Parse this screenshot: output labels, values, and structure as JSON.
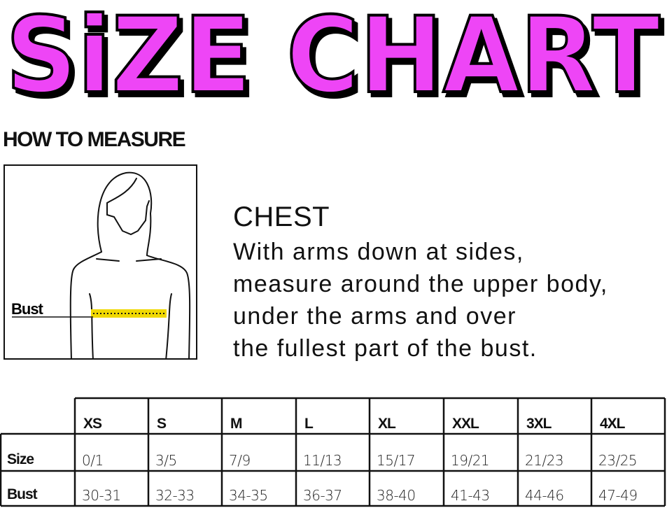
{
  "title": "SiZE CHART",
  "title_color": "#ee44f6",
  "how_to_measure": "HOW TO MEASURE",
  "figure": {
    "label": "Bust",
    "tape_color": "#f0d800"
  },
  "chest": {
    "heading": "CHEST",
    "lines": [
      "With arms down at sides,",
      "measure around the upper body,",
      "under the arms and over",
      "the fullest part of the bust."
    ]
  },
  "table": {
    "columns": [
      "XS",
      "S",
      "M",
      "L",
      "XL",
      "XXL",
      "3XL",
      "4XL"
    ],
    "rows": [
      {
        "label": "Size",
        "values": [
          "0/1",
          "3/5",
          "7/9",
          "11/13",
          "15/17",
          "19/21",
          "21/23",
          "23/25"
        ]
      },
      {
        "label": "Bust",
        "values": [
          "30-31",
          "32-33",
          "34-35",
          "36-37",
          "38-40",
          "41-43",
          "44-46",
          "47-49"
        ]
      }
    ]
  }
}
